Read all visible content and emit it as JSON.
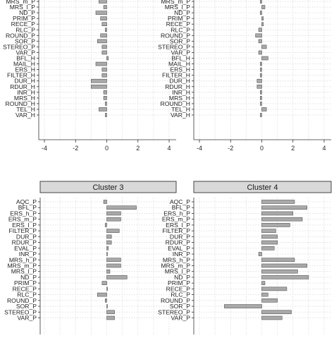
{
  "chart_data": [
    {
      "type": "bar",
      "orientation": "horizontal",
      "title": "",
      "categories": [
        "MRS_m_P",
        "MRS_l_P",
        "ND_P",
        "PRIM_P",
        "RECE_P",
        "RLC_P",
        "ROUND_P",
        "SOR_P",
        "STEREO_P",
        "VAR_P",
        "BFL_H",
        "MAIL_H",
        "ERS_H",
        "FILTER_H",
        "DUR_H",
        "RDUR_H",
        "INR_H",
        "MRS_H",
        "ROUND_H",
        "TEL_H",
        "VAR_H"
      ],
      "values": [
        -0.5,
        -0.2,
        -0.7,
        -0.4,
        -0.3,
        -0.1,
        -0.4,
        -0.6,
        -0.3,
        -0.3,
        0.1,
        -0.7,
        -0.3,
        -0.3,
        -1.0,
        -1.0,
        -0.2,
        -0.2,
        -0.1,
        -0.5,
        -0.1
      ],
      "xlim": [
        -4,
        4
      ],
      "xticks": [
        "-4",
        "-2",
        "0",
        "2",
        "4"
      ],
      "grid": true
    },
    {
      "type": "bar",
      "orientation": "horizontal",
      "title": "",
      "categories": [
        "MRS_m_P",
        "MRS_l_P",
        "ND_P",
        "PRIM_P",
        "RECE_P",
        "RLC_P",
        "ROUND_P",
        "SOR_P",
        "STEREO_P",
        "VAR_P",
        "BFL_H",
        "MAIL_H",
        "ERS_H",
        "FILTER_H",
        "DUR_H",
        "RDUR_H",
        "INR_H",
        "MRS_H",
        "ROUND_H",
        "TEL_H",
        "VAR_H"
      ],
      "values": [
        -0.1,
        0.2,
        -0.1,
        0.1,
        0.1,
        -0.2,
        -0.4,
        -0.2,
        0.3,
        -0.2,
        0.4,
        -0.1,
        -0.1,
        -0.1,
        -0.3,
        -0.3,
        -0.1,
        -0.1,
        -0.1,
        0.3,
        -0.1
      ],
      "xlim": [
        -4,
        4
      ],
      "xticks": [
        "-4",
        "-2",
        "0",
        "2",
        "4"
      ],
      "grid": true
    },
    {
      "type": "bar",
      "orientation": "horizontal",
      "title": "Cluster 3",
      "categories": [
        "AQC_P",
        "BFL_P",
        "ERS_h_P",
        "ERS_m_P",
        "ERS_l_P",
        "FILTER_P",
        "DUR_P",
        "RDUR_P",
        "EVAL_P",
        "INR_P",
        "MRS_h_P",
        "MRS_m_P",
        "MRS_l_P",
        "ND_P",
        "PRIM_P",
        "RECE_P",
        "RLC_P",
        "ROUND_P",
        "SOR_P",
        "STEREO_P",
        "VAR_P"
      ],
      "values": [
        -0.2,
        1.9,
        0.9,
        0.9,
        -0.1,
        0.8,
        0.3,
        0.3,
        0.1,
        0.0,
        0.9,
        0.9,
        0.2,
        1.3,
        -0.3,
        0.0,
        -0.6,
        -0.1,
        0.0,
        0.5,
        0.5
      ],
      "xlim": [
        -4,
        4
      ],
      "grid": true
    },
    {
      "type": "bar",
      "orientation": "horizontal",
      "title": "Cluster 4",
      "categories": [
        "AQC_P",
        "BFL_P",
        "ERS_h_P",
        "ERS_m_P",
        "ERS_l_P",
        "FILTER_P",
        "DUR_P",
        "RDUR_P",
        "EVAL_P",
        "INR_P",
        "MRS_h_P",
        "MRS_m_P",
        "MRS_l_P",
        "ND_P",
        "PRIM_P",
        "RECE_P",
        "RLC_P",
        "ROUND_P",
        "SOR_P",
        "STEREO_P",
        "VAR_P"
      ],
      "values": [
        2.1,
        2.9,
        2.0,
        2.6,
        1.8,
        0.9,
        1.0,
        1.0,
        0.8,
        -0.2,
        2.1,
        2.9,
        2.3,
        3.0,
        0.2,
        1.6,
        0.4,
        1.0,
        -2.4,
        1.9,
        1.3
      ],
      "xlim": [
        -4,
        4
      ],
      "grid": true
    }
  ],
  "colors": {
    "bar_fill": "#a9a9a9",
    "bar_stroke": "#555555",
    "strip_fill": "#d9d9d9",
    "grid": "#d9d9d9",
    "axis": "#333333"
  }
}
